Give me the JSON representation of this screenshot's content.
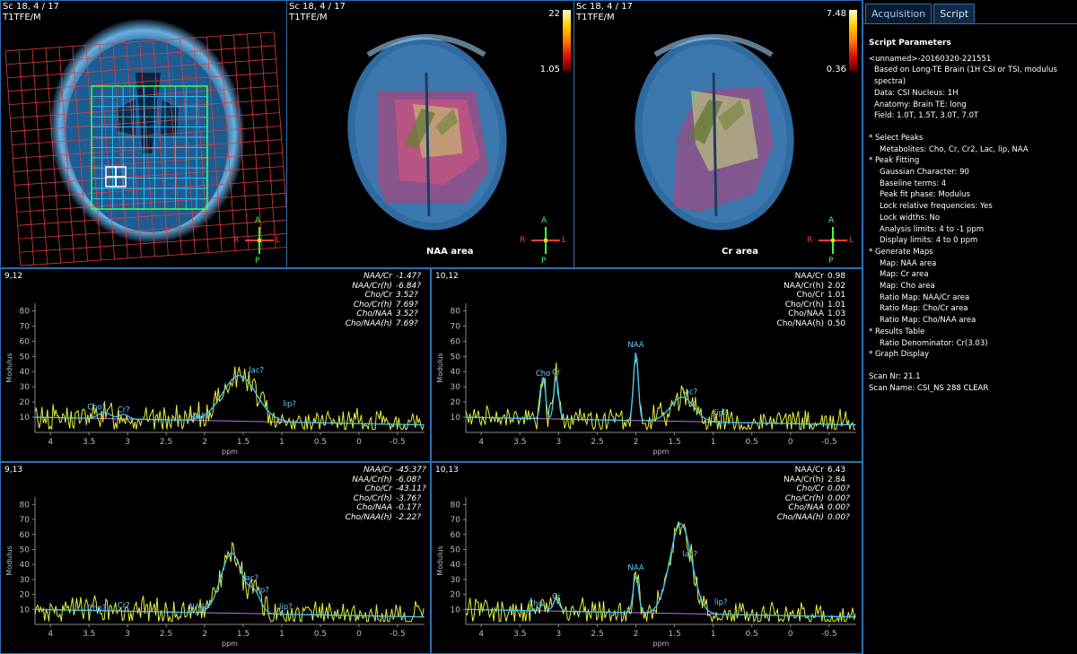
{
  "viewports": [
    {
      "slice": "Sc 18, 4 / 17",
      "series": "T1TFE/M"
    },
    {
      "slice": "Sc 18, 4 / 17",
      "series": "T1TFE/M",
      "map_label": "NAA area",
      "cbar_max": "22",
      "cbar_min": "1.05"
    },
    {
      "slice": "Sc 18, 4 / 17",
      "series": "T1TFE/M",
      "map_label": "Cr area",
      "cbar_max": "7.48",
      "cbar_min": "0.36"
    }
  ],
  "orientation": {
    "a": "A",
    "p": "P",
    "r": "R",
    "l": "L"
  },
  "spectra": [
    {
      "pos": "9,12",
      "ratios": [
        [
          "NAA/Cr",
          "-1.47?"
        ],
        [
          "NAA/Cr(h)",
          "-6.84?"
        ],
        [
          "Cho/Cr",
          "3.52?"
        ],
        [
          "Cho/Cr(h)",
          "7.69?"
        ],
        [
          "Cho/NAA",
          "3.52?"
        ],
        [
          "Cho/NAA(h)",
          "7.69?"
        ]
      ],
      "italic": true,
      "peaks": [
        {
          "t": "Cho?",
          "x": 3.4,
          "y": 14
        },
        {
          "t": "Cr?",
          "x": 3.05,
          "y": 12
        },
        {
          "t": "NAA?",
          "x": 2.07,
          "y": 8
        },
        {
          "t": "lac?",
          "x": 1.33,
          "y": 38
        },
        {
          "t": "lip?",
          "x": 0.9,
          "y": 16
        }
      ]
    },
    {
      "pos": "10,12",
      "ratios": [
        [
          "NAA/Cr",
          "0.98"
        ],
        [
          "NAA/Cr(h)",
          "2.02"
        ],
        [
          "Cho/Cr",
          "1.01"
        ],
        [
          "Cho/Cr(h)",
          "1.01"
        ],
        [
          "Cho/NAA",
          "1.03"
        ],
        [
          "Cho/NAA(h)",
          "0.50"
        ]
      ],
      "italic": false,
      "peaks": [
        {
          "t": "Cho",
          "x": 3.2,
          "y": 36
        },
        {
          "t": "Cr",
          "x": 3.03,
          "y": 37
        },
        {
          "t": "NAA",
          "x": 2.0,
          "y": 55
        },
        {
          "t": "lac?",
          "x": 1.3,
          "y": 24
        },
        {
          "t": "lip?",
          "x": 0.9,
          "y": 10
        }
      ]
    },
    {
      "pos": "9,13",
      "ratios": [
        [
          "NAA/Cr",
          "-45.37?"
        ],
        [
          "NAA/Cr(h)",
          "-6.08?"
        ],
        [
          "Cho/Cr",
          "-43.11?"
        ],
        [
          "Cho/Cr(h)",
          "-3.76?"
        ],
        [
          "Cho/NAA",
          "-0.17?"
        ],
        [
          "Cho/NAA(h)",
          "-2.22?"
        ]
      ],
      "italic": true,
      "peaks": [
        {
          "t": "Cho?",
          "x": 3.4,
          "y": 8
        },
        {
          "t": "Cr?",
          "x": 3.05,
          "y": 10
        },
        {
          "t": "NAA?",
          "x": 2.07,
          "y": 9
        },
        {
          "t": "lac?",
          "x": 1.4,
          "y": 28
        },
        {
          "t": "lip?",
          "x": 1.25,
          "y": 20
        },
        {
          "t": "lip?",
          "x": 0.95,
          "y": 9
        }
      ]
    },
    {
      "pos": "10,13",
      "ratios": [
        [
          "NAA/Cr",
          "6.43"
        ],
        [
          "NAA/Cr(h)",
          "2.84"
        ],
        [
          "Cho/Cr",
          "0.00?"
        ],
        [
          "Cho/Cr(h)",
          "0.00?"
        ],
        [
          "Cho/NAA",
          "0.00?"
        ],
        [
          "Cho/NAA(h)",
          "0.00?"
        ]
      ],
      "italic": "mixed",
      "peaks": [
        {
          "t": "Cho",
          "x": 3.3,
          "y": 11
        },
        {
          "t": "Cr",
          "x": 3.03,
          "y": 16
        },
        {
          "t": "NAA",
          "x": 2.0,
          "y": 35
        },
        {
          "t": "lac?",
          "x": 1.3,
          "y": 44
        },
        {
          "t": "lip?",
          "x": 0.9,
          "y": 12
        }
      ]
    }
  ],
  "axis": {
    "xlabel": "ppm",
    "ylabel": "Modulus",
    "xticks": [
      "4",
      "3.5",
      "3",
      "2.5",
      "2",
      "1.5",
      "1",
      "0.5",
      "0",
      "-0.5"
    ],
    "yticks": [
      "10",
      "20",
      "30",
      "40",
      "50",
      "60",
      "70",
      "80"
    ]
  },
  "tabs": [
    {
      "label": "Acquisition"
    },
    {
      "label": "Script"
    }
  ],
  "script": {
    "title": "Script Parameters",
    "header": [
      "<unnamed>-20160320-221551",
      "Based on Long-TE Brain (1H CSI or TSI, modulus spectra)",
      "Data: CSI  Nucleus: 1H",
      "Anatomy: Brain  TE: long",
      "Field: 1.0T, 1.5T, 3.0T, 7.0T"
    ],
    "sections": [
      {
        "head": "* Select Peaks",
        "items": [
          "Metabolites: Cho, Cr, Cr2, Lac, lip, NAA"
        ]
      },
      {
        "head": "* Peak Fitting",
        "items": [
          "Gaussian Character: 90",
          "Baseline terms: 4",
          "Peak fit phase: Modulus",
          "Lock relative frequencies: Yes",
          "Lock widths: No",
          "Analysis limits: 4 to -1 ppm",
          "Display limits: 4 to 0 ppm"
        ]
      },
      {
        "head": "* Generate Maps",
        "items": [
          "Map: NAA area",
          "Map: Cr area",
          "Map: Cho area",
          "Ratio Map: NAA/Cr area",
          "Ratio Map: Cho/Cr area",
          "Ratio Map: Cho/NAA area"
        ]
      },
      {
        "head": "* Results Table",
        "items": [
          "Ratio Denominator: Cr(3.03)"
        ]
      },
      {
        "head": "* Graph Display",
        "items": []
      }
    ],
    "footer": [
      "Scan Nr: 21.1",
      "Scan Name: CSI_NS 288 CLEAR"
    ]
  }
}
